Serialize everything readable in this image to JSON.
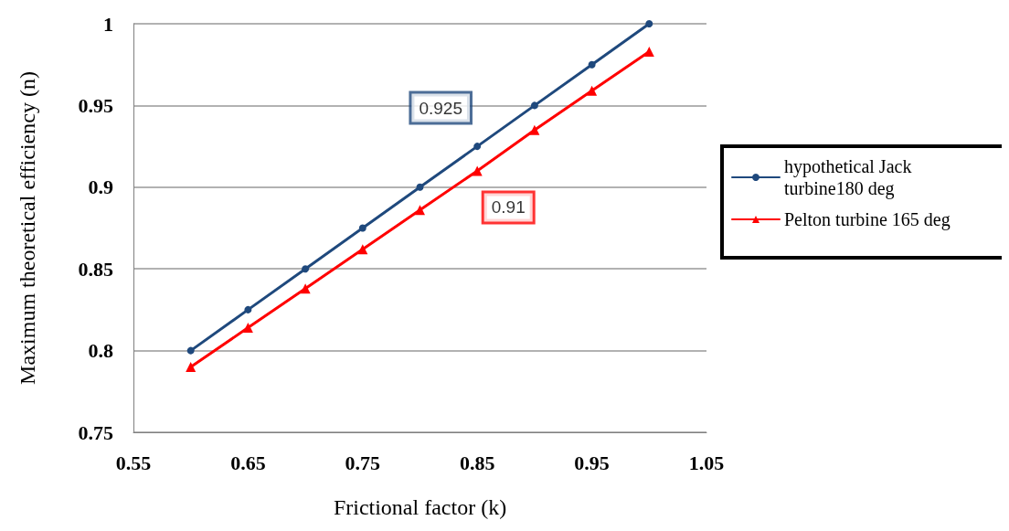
{
  "chart_data": {
    "type": "line",
    "xlabel": "Frictional factor (k)",
    "ylabel": "Maximum theoretical efficiency (n)",
    "x": [
      0.6,
      0.65,
      0.7,
      0.75,
      0.8,
      0.85,
      0.9,
      0.95,
      1.0
    ],
    "series": [
      {
        "name": "hypothetical Jack turbine180 deg",
        "color": "#1f497d",
        "marker": "circle",
        "values": [
          0.8,
          0.825,
          0.85,
          0.875,
          0.9,
          0.925,
          0.95,
          0.975,
          1.0
        ]
      },
      {
        "name": "Pelton turbine 165 deg",
        "color": "#ff0000",
        "marker": "triangle",
        "values": [
          0.79,
          0.814,
          0.838,
          0.862,
          0.886,
          0.91,
          0.935,
          0.959,
          0.983
        ]
      }
    ],
    "xlim": [
      0.55,
      1.05
    ],
    "xticks": [
      0.55,
      0.65,
      0.75,
      0.85,
      0.95,
      1.05
    ],
    "ylim": [
      0.75,
      1
    ],
    "yticks": [
      0.75,
      0.8,
      0.85,
      0.9,
      0.95,
      1
    ],
    "annotations": [
      {
        "text": "0.925",
        "x": 0.85,
        "y": 0.925
      },
      {
        "text": "0.91",
        "x": 0.85,
        "y": 0.91
      }
    ],
    "grid": "y",
    "legend": "right",
    "line_style": "solid"
  }
}
